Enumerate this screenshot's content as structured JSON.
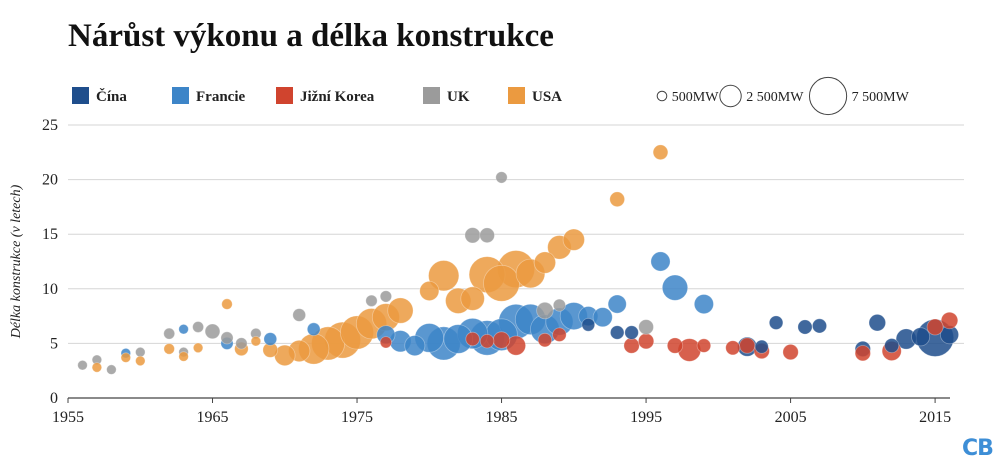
{
  "chart_data": {
    "type": "scatter",
    "title": "Nárůst výkonu a délka konstrukce",
    "xlabel": "",
    "ylabel": "Délka konstrukce (v letech)",
    "xlim": [
      1955,
      2017
    ],
    "ylim": [
      0,
      25
    ],
    "x_ticks": [
      1955,
      1965,
      1975,
      1985,
      1995,
      2005,
      2015
    ],
    "y_ticks": [
      0,
      5,
      10,
      15,
      20,
      25
    ],
    "grid": "horizontal",
    "legend_position": "top",
    "series": [
      {
        "name": "Čína",
        "color": "#1f4e8c",
        "points": [
          [
            1991,
            6.7,
            900
          ],
          [
            1993,
            6.0,
            1000
          ],
          [
            1994,
            6.0,
            1000
          ],
          [
            2002,
            4.7,
            2000
          ],
          [
            2003,
            4.7,
            950
          ],
          [
            2004,
            6.9,
            1000
          ],
          [
            2006,
            6.5,
            1100
          ],
          [
            2007,
            6.6,
            1100
          ],
          [
            2010,
            4.5,
            1300
          ],
          [
            2011,
            6.9,
            1500
          ],
          [
            2012,
            4.8,
            1100
          ],
          [
            2013,
            5.4,
            2200
          ],
          [
            2014,
            5.6,
            1800
          ],
          [
            2015,
            5.5,
            7500
          ],
          [
            2016,
            5.8,
            1800
          ]
        ]
      },
      {
        "name": "Francie",
        "color": "#3d85c8",
        "points": [
          [
            1959,
            4.1,
            500
          ],
          [
            1963,
            6.3,
            500
          ],
          [
            1966,
            5.0,
            800
          ],
          [
            1969,
            5.4,
            900
          ],
          [
            1972,
            6.3,
            900
          ],
          [
            1977,
            5.8,
            1800
          ],
          [
            1978,
            5.2,
            2500
          ],
          [
            1979,
            4.8,
            2200
          ],
          [
            1980,
            5.5,
            4500
          ],
          [
            1981,
            5.0,
            6000
          ],
          [
            1982,
            5.4,
            4500
          ],
          [
            1983,
            5.9,
            5000
          ],
          [
            1984,
            5.5,
            6500
          ],
          [
            1985,
            5.8,
            5500
          ],
          [
            1986,
            7.0,
            6500
          ],
          [
            1987,
            7.2,
            5000
          ],
          [
            1988,
            6.3,
            4500
          ],
          [
            1989,
            7.0,
            4000
          ],
          [
            1990,
            7.5,
            4000
          ],
          [
            1991,
            7.5,
            2000
          ],
          [
            1992,
            7.4,
            2000
          ],
          [
            1993,
            8.6,
            1800
          ],
          [
            1996,
            12.5,
            2000
          ],
          [
            1997,
            10.1,
            3500
          ],
          [
            1999,
            8.6,
            2000
          ]
        ]
      },
      {
        "name": "Jižní Korea",
        "color": "#d0442e",
        "points": [
          [
            1977,
            5.1,
            700
          ],
          [
            1983,
            5.4,
            1000
          ],
          [
            1984,
            5.2,
            1000
          ],
          [
            1985,
            5.3,
            1500
          ],
          [
            1986,
            4.8,
            2000
          ],
          [
            1988,
            5.3,
            1000
          ],
          [
            1989,
            5.8,
            1000
          ],
          [
            1994,
            4.8,
            1300
          ],
          [
            1995,
            5.2,
            1300
          ],
          [
            1997,
            4.8,
            1300
          ],
          [
            1998,
            4.4,
            2800
          ],
          [
            1999,
            4.8,
            1000
          ],
          [
            2001,
            4.6,
            1100
          ],
          [
            2002,
            4.8,
            1300
          ],
          [
            2003,
            4.3,
            1300
          ],
          [
            2005,
            4.2,
            1300
          ],
          [
            2010,
            4.1,
            1300
          ],
          [
            2012,
            4.3,
            2000
          ],
          [
            2015,
            6.5,
            1400
          ],
          [
            2016,
            7.1,
            1500
          ]
        ]
      },
      {
        "name": "UK",
        "color": "#9b9b9b",
        "points": [
          [
            1956,
            3.0,
            500
          ],
          [
            1957,
            3.5,
            500
          ],
          [
            1958,
            2.6,
            500
          ],
          [
            1960,
            4.2,
            500
          ],
          [
            1962,
            5.9,
            650
          ],
          [
            1963,
            4.2,
            500
          ],
          [
            1964,
            6.5,
            650
          ],
          [
            1965,
            6.1,
            1200
          ],
          [
            1966,
            5.5,
            800
          ],
          [
            1967,
            5.0,
            700
          ],
          [
            1968,
            5.9,
            600
          ],
          [
            1971,
            7.6,
            900
          ],
          [
            1976,
            8.9,
            700
          ],
          [
            1977,
            9.3,
            700
          ],
          [
            1983,
            14.9,
            1300
          ],
          [
            1984,
            14.9,
            1200
          ],
          [
            1985,
            20.2,
            700
          ],
          [
            1988,
            8.0,
            1500
          ],
          [
            1989,
            8.5,
            800
          ],
          [
            1995,
            6.5,
            1200
          ]
        ]
      },
      {
        "name": "USA",
        "color": "#eb9a40",
        "points": [
          [
            1957,
            2.8,
            500
          ],
          [
            1959,
            3.7,
            500
          ],
          [
            1960,
            3.4,
            500
          ],
          [
            1962,
            4.5,
            600
          ],
          [
            1963,
            3.8,
            500
          ],
          [
            1964,
            4.6,
            500
          ],
          [
            1966,
            8.6,
            600
          ],
          [
            1967,
            4.5,
            1000
          ],
          [
            1968,
            5.2,
            500
          ],
          [
            1969,
            4.4,
            1200
          ],
          [
            1970,
            3.9,
            2300
          ],
          [
            1971,
            4.3,
            2500
          ],
          [
            1972,
            4.5,
            5000
          ],
          [
            1973,
            5.0,
            6000
          ],
          [
            1974,
            5.3,
            7000
          ],
          [
            1975,
            6.0,
            6000
          ],
          [
            1976,
            6.8,
            5000
          ],
          [
            1977,
            7.4,
            4000
          ],
          [
            1978,
            8.0,
            3500
          ],
          [
            1980,
            9.8,
            2000
          ],
          [
            1981,
            11.2,
            5000
          ],
          [
            1982,
            8.9,
            3500
          ],
          [
            1983,
            9.1,
            3000
          ],
          [
            1984,
            11.3,
            7000
          ],
          [
            1985,
            10.5,
            7000
          ],
          [
            1986,
            11.8,
            7500
          ],
          [
            1987,
            11.4,
            4500
          ],
          [
            1988,
            12.4,
            2500
          ],
          [
            1989,
            13.8,
            3000
          ],
          [
            1990,
            14.5,
            2500
          ],
          [
            1993,
            18.2,
            1200
          ],
          [
            1996,
            22.5,
            1200
          ]
        ]
      }
    ],
    "size_legend": [
      {
        "value": 500,
        "label": "500MW"
      },
      {
        "value": 2500,
        "label": "2 500MW"
      },
      {
        "value": 7500,
        "label": "7 500MW"
      }
    ]
  },
  "logo_text": "CB"
}
